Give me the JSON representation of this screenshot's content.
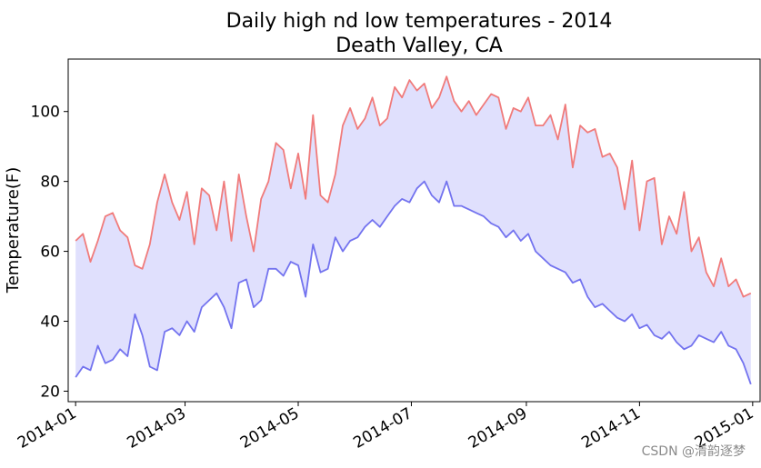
{
  "chart_data": {
    "type": "line",
    "title_line1": "Daily high nd low temperatures  - 2014",
    "title_line2": "Death Valley, CA",
    "xlabel": "",
    "ylabel": "Temperature(F)",
    "ylim": [
      17,
      115
    ],
    "yticks": [
      20,
      40,
      60,
      80,
      100
    ],
    "xlim": [
      -4,
      369
    ],
    "xticks": [
      {
        "day": 0,
        "label": "2014-01"
      },
      {
        "day": 59,
        "label": "2014-03"
      },
      {
        "day": 120,
        "label": "2014-05"
      },
      {
        "day": 181,
        "label": "2014-07"
      },
      {
        "day": 243,
        "label": "2014-09"
      },
      {
        "day": 304,
        "label": "2014-11"
      },
      {
        "day": 365,
        "label": "2015-01"
      }
    ],
    "fill_between": true,
    "colors": {
      "high": "#f07b7b",
      "low": "#7373ef",
      "fill": "#e0e0fd"
    },
    "series": [
      {
        "name": "high",
        "x": [
          0,
          4,
          8,
          12,
          16,
          20,
          24,
          28,
          32,
          36,
          40,
          44,
          48,
          52,
          56,
          60,
          64,
          68,
          72,
          76,
          80,
          84,
          88,
          92,
          96,
          100,
          104,
          108,
          112,
          116,
          120,
          124,
          128,
          132,
          136,
          140,
          144,
          148,
          152,
          156,
          160,
          164,
          168,
          172,
          176,
          180,
          184,
          188,
          192,
          196,
          200,
          204,
          208,
          212,
          216,
          220,
          224,
          228,
          232,
          236,
          240,
          244,
          248,
          252,
          256,
          260,
          264,
          268,
          272,
          276,
          280,
          284,
          288,
          292,
          296,
          300,
          304,
          308,
          312,
          316,
          320,
          324,
          328,
          332,
          336,
          340,
          344,
          348,
          352,
          356,
          360,
          364
        ],
        "values": [
          63,
          65,
          57,
          63,
          70,
          71,
          66,
          64,
          56,
          55,
          62,
          74,
          82,
          74,
          69,
          77,
          62,
          78,
          76,
          66,
          80,
          63,
          82,
          70,
          60,
          75,
          80,
          91,
          89,
          78,
          88,
          75,
          99,
          76,
          74,
          82,
          96,
          101,
          95,
          98,
          104,
          96,
          98,
          107,
          104,
          109,
          106,
          108,
          101,
          104,
          110,
          103,
          100,
          103,
          99,
          102,
          105,
          104,
          95,
          101,
          100,
          104,
          96,
          96,
          99,
          92,
          102,
          84,
          96,
          94,
          95,
          87,
          88,
          84,
          72,
          86,
          66,
          80,
          81,
          62,
          70,
          65,
          77,
          60,
          64,
          54,
          50,
          58,
          50,
          52,
          47,
          48
        ]
      },
      {
        "name": "low",
        "x": [
          0,
          4,
          8,
          12,
          16,
          20,
          24,
          28,
          32,
          36,
          40,
          44,
          48,
          52,
          56,
          60,
          64,
          68,
          72,
          76,
          80,
          84,
          88,
          92,
          96,
          100,
          104,
          108,
          112,
          116,
          120,
          124,
          128,
          132,
          136,
          140,
          144,
          148,
          152,
          156,
          160,
          164,
          168,
          172,
          176,
          180,
          184,
          188,
          192,
          196,
          200,
          204,
          208,
          212,
          216,
          220,
          224,
          228,
          232,
          236,
          240,
          244,
          248,
          252,
          256,
          260,
          264,
          268,
          272,
          276,
          280,
          284,
          288,
          292,
          296,
          300,
          304,
          308,
          312,
          316,
          320,
          324,
          328,
          332,
          336,
          340,
          344,
          348,
          352,
          356,
          360,
          364
        ],
        "values": [
          24,
          27,
          26,
          33,
          28,
          29,
          32,
          30,
          42,
          36,
          27,
          26,
          37,
          38,
          36,
          40,
          37,
          44,
          46,
          48,
          44,
          38,
          51,
          52,
          44,
          46,
          55,
          55,
          53,
          57,
          56,
          47,
          62,
          54,
          55,
          64,
          60,
          63,
          64,
          67,
          69,
          67,
          70,
          73,
          75,
          74,
          78,
          80,
          76,
          74,
          80,
          73,
          73,
          72,
          71,
          70,
          68,
          67,
          64,
          66,
          63,
          65,
          60,
          58,
          56,
          55,
          54,
          51,
          52,
          47,
          44,
          45,
          43,
          41,
          40,
          42,
          38,
          39,
          36,
          35,
          37,
          34,
          32,
          33,
          36,
          35,
          34,
          37,
          33,
          32,
          28,
          22
        ]
      }
    ]
  },
  "watermark": "CSDN @清韵逐梦"
}
